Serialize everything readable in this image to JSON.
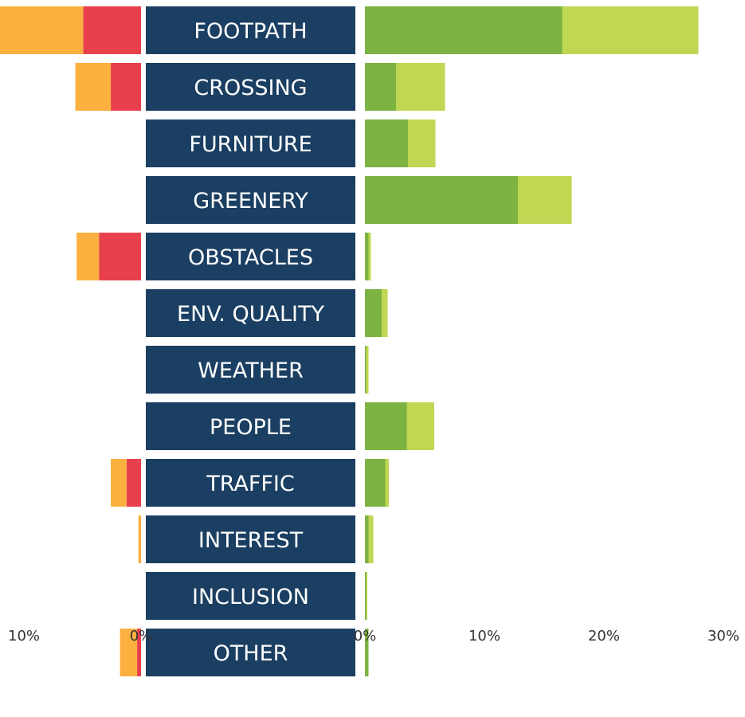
{
  "chart_data": {
    "type": "bar",
    "orientation": "horizontal-diverging",
    "title": "",
    "categories": [
      "FOOTPATH",
      "CROSSING",
      "FURNITURE",
      "GREENERY",
      "OBSTACLES",
      "ENV. QUALITY",
      "WEATHER",
      "PEOPLE",
      "TRAFFIC",
      "INTEREST",
      "INCLUSION",
      "OTHER"
    ],
    "negative_side": {
      "xlim": [
        0,
        10
      ],
      "tick_labels": [
        "10%",
        "0%"
      ],
      "series": [
        {
          "color": "#e8414d",
          "values": [
            4.4,
            2.3,
            0,
            0,
            3.2,
            0,
            0,
            0,
            1.1,
            0,
            0,
            0.3
          ]
        },
        {
          "color": "#fbb040",
          "values": [
            6.4,
            2.7,
            0,
            0,
            1.7,
            0,
            0,
            0,
            1.2,
            0.2,
            0,
            1.3
          ]
        }
      ]
    },
    "positive_side": {
      "xlim": [
        0,
        30
      ],
      "tick_labels": [
        "0%",
        "10%",
        "20%",
        "30%"
      ],
      "series": [
        {
          "color": "#7cb342",
          "values": [
            16.5,
            2.6,
            3.6,
            12.8,
            0.3,
            1.4,
            0.1,
            3.5,
            1.7,
            0.3,
            0.1,
            0.3
          ]
        },
        {
          "color": "#c0d754",
          "values": [
            11.4,
            4.1,
            2.3,
            4.5,
            0.2,
            0.5,
            0.2,
            2.3,
            0.3,
            0.4,
            0.1,
            0
          ]
        }
      ]
    },
    "grid": false,
    "legend": "none"
  }
}
